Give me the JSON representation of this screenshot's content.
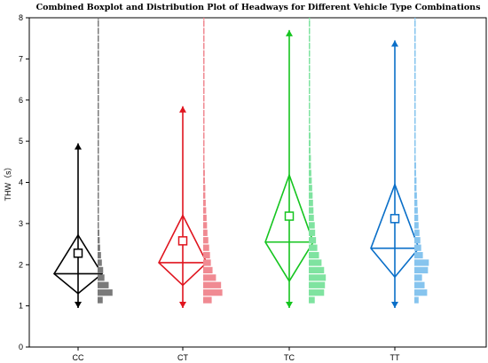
{
  "chart_data": {
    "type": "boxplot-distribution",
    "title": "Combined Boxplot and Distribution Plot of Headways for Different Vehicle Type Combinations",
    "xlabel": "",
    "ylabel": "THW（s）",
    "ylim": [
      0,
      8
    ],
    "yticks": [
      0,
      1,
      2,
      3,
      4,
      5,
      6,
      7,
      8
    ],
    "categories": [
      "CC",
      "CT",
      "TC",
      "TT"
    ],
    "groups": [
      {
        "name": "CC",
        "color": "#000000",
        "hist_color": "#7a7a7a",
        "whisker_low": 0.95,
        "q1": 1.3,
        "median": 1.78,
        "mean": 2.28,
        "q3": 2.72,
        "whisker_high": 4.95,
        "hist": [
          0.12,
          0.35,
          0.26,
          0.16,
          0.13,
          0.1,
          0.08,
          0.06,
          0.05,
          0.04,
          0.03,
          0.03,
          0.02,
          0.02,
          0.02,
          0.01,
          0.01,
          0.01,
          0.01,
          0.01,
          0.01,
          0.01,
          0.01,
          0.01,
          0.01,
          0.01,
          0.01,
          0.01,
          0.01,
          0.01,
          0.01,
          0.01,
          0.01,
          0.01,
          0.01,
          0.01,
          0.01,
          0.01
        ]
      },
      {
        "name": "CT",
        "color": "#e0141e",
        "hist_color": "#f08a92",
        "whisker_low": 0.95,
        "q1": 1.5,
        "median": 2.05,
        "mean": 2.58,
        "q3": 3.2,
        "whisker_high": 5.85,
        "hist": [
          0.2,
          0.45,
          0.42,
          0.3,
          0.22,
          0.18,
          0.16,
          0.14,
          0.12,
          0.1,
          0.09,
          0.08,
          0.07,
          0.06,
          0.05,
          0.05,
          0.04,
          0.04,
          0.03,
          0.03,
          0.03,
          0.02,
          0.02,
          0.02,
          0.02,
          0.02,
          0.02,
          0.01,
          0.01,
          0.01,
          0.01,
          0.01,
          0.01,
          0.01,
          0.01,
          0.01,
          0.01,
          0.01
        ]
      },
      {
        "name": "TC",
        "color": "#15c51f",
        "hist_color": "#7fe3a0",
        "whisker_low": 0.95,
        "q1": 1.6,
        "median": 2.55,
        "mean": 3.18,
        "q3": 4.18,
        "whisker_high": 7.7,
        "hist": [
          0.14,
          0.36,
          0.38,
          0.4,
          0.36,
          0.3,
          0.24,
          0.2,
          0.17,
          0.15,
          0.14,
          0.12,
          0.11,
          0.1,
          0.09,
          0.08,
          0.07,
          0.06,
          0.05,
          0.05,
          0.04,
          0.04,
          0.04,
          0.03,
          0.03,
          0.03,
          0.02,
          0.02,
          0.02,
          0.02,
          0.02,
          0.02,
          0.01,
          0.01,
          0.01,
          0.01,
          0.01,
          0.01
        ]
      },
      {
        "name": "TT",
        "color": "#0a6fc8",
        "hist_color": "#86c4ee",
        "whisker_low": 0.95,
        "q1": 1.7,
        "median": 2.4,
        "mean": 3.12,
        "q3": 3.95,
        "whisker_high": 7.45,
        "hist": [
          0.1,
          0.3,
          0.24,
          0.18,
          0.32,
          0.34,
          0.2,
          0.16,
          0.14,
          0.12,
          0.1,
          0.09,
          0.08,
          0.07,
          0.06,
          0.05,
          0.05,
          0.04,
          0.04,
          0.03,
          0.03,
          0.03,
          0.02,
          0.02,
          0.02,
          0.02,
          0.02,
          0.01,
          0.01,
          0.01,
          0.01,
          0.01,
          0.01,
          0.01,
          0.01,
          0.01,
          0.01,
          0.01
        ]
      }
    ],
    "grid": false,
    "legend": "none"
  }
}
